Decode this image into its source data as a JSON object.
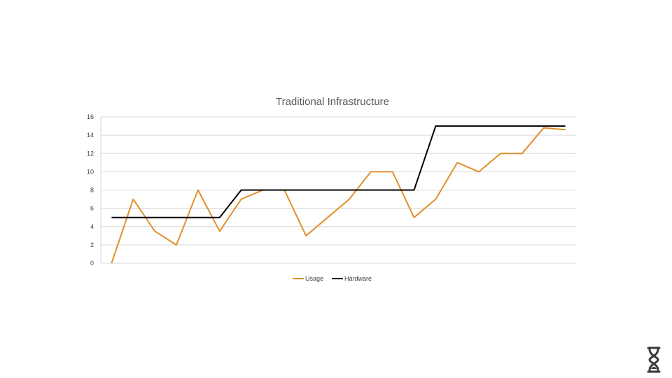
{
  "chart_data": {
    "type": "line",
    "title": "Traditional Infrastructure",
    "xlabel": "",
    "ylabel": "",
    "ylim": [
      0,
      16
    ],
    "yticks": [
      0,
      2,
      4,
      6,
      8,
      10,
      12,
      14,
      16
    ],
    "grid": true,
    "legend": "bottom",
    "x": [
      1,
      2,
      3,
      4,
      5,
      6,
      7,
      8,
      9,
      10,
      11,
      12,
      13,
      14,
      15,
      16,
      17,
      18,
      19,
      20,
      21,
      22
    ],
    "series": [
      {
        "name": "Usage",
        "color": "#e28f2c",
        "values": [
          0,
          7,
          3.5,
          2,
          8,
          3.5,
          7,
          8,
          8,
          3,
          5,
          7,
          10,
          10,
          5,
          7,
          11,
          10,
          12,
          12,
          14.8,
          14.6
        ]
      },
      {
        "name": "Hardware",
        "color": "#000000",
        "values": [
          5,
          5,
          5,
          5,
          5,
          5,
          8,
          8,
          8,
          8,
          8,
          8,
          8,
          8,
          8,
          15,
          15,
          15,
          15,
          15,
          15,
          15
        ]
      }
    ]
  },
  "logo": {
    "icon": "hourglass-logo-icon",
    "color": "#3a3a3a"
  }
}
